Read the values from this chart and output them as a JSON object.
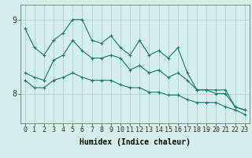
{
  "xlabel": "Humidex (Indice chaleur)",
  "bg_color": "#d4eeee",
  "grid_color": "#a8d4d4",
  "line_color": "#1a7a6e",
  "x_labels": [
    "0",
    "1",
    "2",
    "3",
    "4",
    "5",
    "6",
    "7",
    "8",
    "9",
    "10",
    "11",
    "12",
    "13",
    "14",
    "15",
    "16",
    "17",
    "18",
    "19",
    "20",
    "21",
    "22",
    "23"
  ],
  "line1": [
    8.88,
    8.62,
    8.52,
    8.72,
    8.82,
    9.0,
    9.0,
    8.72,
    8.68,
    8.78,
    8.62,
    8.52,
    8.72,
    8.52,
    8.58,
    8.48,
    8.62,
    8.28,
    8.05,
    8.05,
    8.05,
    8.05,
    7.82,
    7.78
  ],
  "line2": [
    8.28,
    8.22,
    8.18,
    8.45,
    8.52,
    8.72,
    8.58,
    8.48,
    8.48,
    8.52,
    8.48,
    8.32,
    8.38,
    8.28,
    8.32,
    8.22,
    8.28,
    8.18,
    8.05,
    8.05,
    8.0,
    8.0,
    7.82,
    7.78
  ],
  "line3": [
    8.18,
    8.08,
    8.08,
    8.18,
    8.22,
    8.28,
    8.22,
    8.18,
    8.18,
    8.18,
    8.12,
    8.08,
    8.08,
    8.02,
    8.02,
    7.98,
    7.98,
    7.92,
    7.88,
    7.88,
    7.88,
    7.82,
    7.78,
    7.72
  ],
  "ylim": [
    7.6,
    9.2
  ],
  "yticks": [
    8,
    9
  ],
  "tick_fontsize": 6,
  "xlabel_fontsize": 7
}
